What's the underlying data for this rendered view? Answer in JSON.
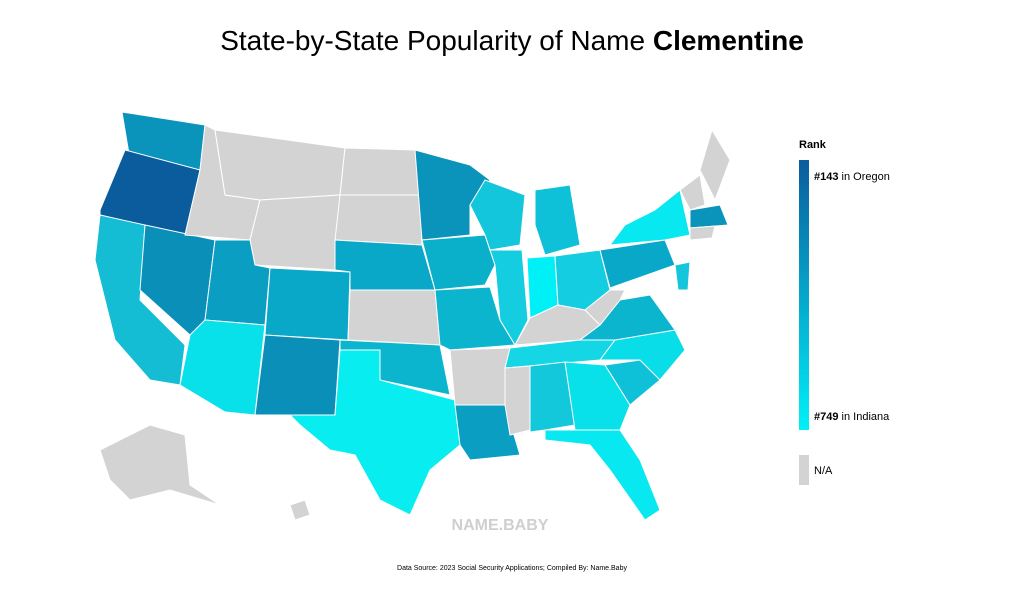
{
  "title": {
    "text": "State-by-State Popularity of Name ",
    "name": "Clementine"
  },
  "legend": {
    "title": "Rank",
    "top": {
      "rank": {
        "value": 143,
        "label": "#143"
      },
      "state": "in Oregon",
      "color": "#0a5c9c"
    },
    "bottom": {
      "rank": {
        "value": 749,
        "label": "#749"
      },
      "state": "in Indiana",
      "color": "#00f0f8"
    },
    "missing": "N/A"
  },
  "watermark": "NAME.BABY",
  "source": "Data Source: 2023 Social Security Applications; Compiled By: Name.Baby"
}
